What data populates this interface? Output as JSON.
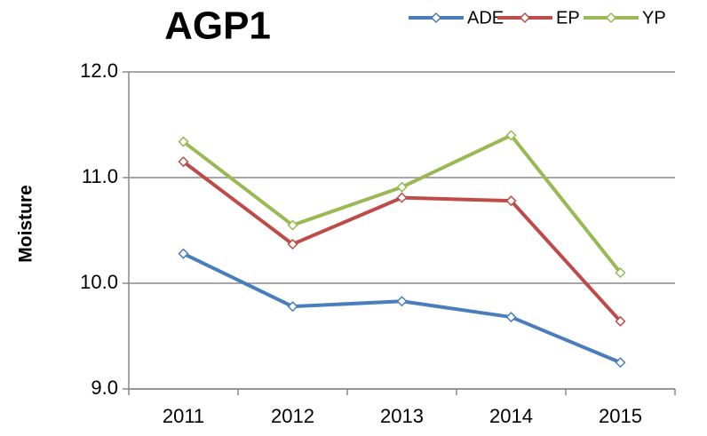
{
  "chart_data": {
    "type": "line",
    "title": "AGP1",
    "y_label": "Moisture",
    "categories": [
      "2011",
      "2012",
      "2013",
      "2014",
      "2015"
    ],
    "series": [
      {
        "name": "ADE",
        "color": "#4a7ebb",
        "values": [
          10.28,
          9.78,
          9.83,
          9.68,
          9.25
        ]
      },
      {
        "name": "EP",
        "color": "#be4b48",
        "values": [
          11.15,
          10.37,
          10.81,
          10.78,
          9.64
        ]
      },
      {
        "name": "YP",
        "color": "#98b954",
        "values": [
          11.34,
          10.55,
          10.91,
          11.4,
          10.1
        ]
      }
    ],
    "ylim": [
      9,
      12
    ],
    "yticks": [
      {
        "value": 9,
        "label": "9.0"
      },
      {
        "value": 10,
        "label": "10.0"
      },
      {
        "value": 11,
        "label": "11.0"
      },
      {
        "value": 12,
        "label": "12.0"
      }
    ],
    "grid": true,
    "legend": "top-right"
  }
}
